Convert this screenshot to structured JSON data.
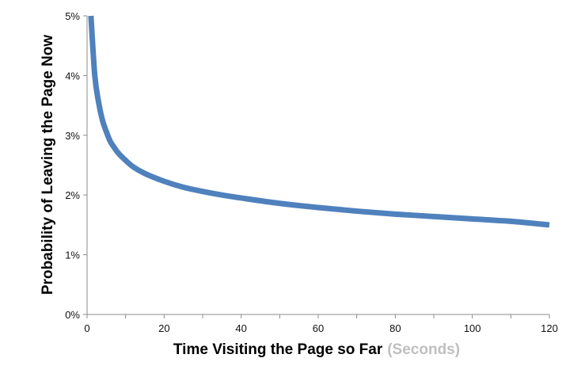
{
  "chart_data": {
    "type": "line",
    "title": "",
    "xlabel": "Time Visiting the Page so Far",
    "xlabel_unit": "(Seconds)",
    "ylabel": "Probability of Leaving  the Page Now",
    "xlim": [
      0,
      120
    ],
    "ylim": [
      0,
      5
    ],
    "x_ticks": [
      0,
      20,
      40,
      60,
      80,
      100,
      120
    ],
    "x_tick_labels": [
      "0",
      "20",
      "40",
      "60",
      "80",
      "100",
      "120"
    ],
    "x_minor_tick_step": 10,
    "y_ticks": [
      0,
      1,
      2,
      3,
      4,
      5
    ],
    "y_tick_labels": [
      "0%",
      "1%",
      "2%",
      "3%",
      "4%",
      "5%"
    ],
    "grid": false,
    "legend": "none",
    "series": [
      {
        "color": "#4f81bd",
        "x": [
          1,
          2,
          3,
          4,
          5,
          6,
          7,
          8,
          10,
          12,
          15,
          20,
          25,
          30,
          35,
          40,
          50,
          60,
          70,
          80,
          90,
          100,
          110,
          120
        ],
        "y": [
          5.0,
          4.0,
          3.55,
          3.25,
          3.06,
          2.9,
          2.8,
          2.71,
          2.58,
          2.47,
          2.36,
          2.23,
          2.13,
          2.06,
          2.0,
          1.95,
          1.86,
          1.79,
          1.73,
          1.68,
          1.64,
          1.6,
          1.56,
          1.5
        ]
      }
    ],
    "colors": {
      "axis": "#8c8c8c",
      "unit_text": "#bfbfbf"
    }
  }
}
